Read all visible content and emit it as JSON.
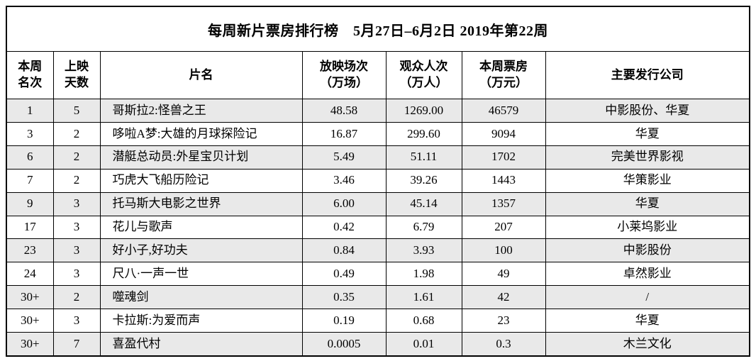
{
  "title": "每周新片票房排行榜　5月27日–6月2日 2019年第22周",
  "columns": [
    {
      "id": "rank",
      "label": "本周\n名次"
    },
    {
      "id": "days",
      "label": "上映\n天数"
    },
    {
      "id": "title",
      "label": "片名"
    },
    {
      "id": "screenings",
      "label": "放映场次\n（万场）"
    },
    {
      "id": "audience",
      "label": "观众人次\n（万人）"
    },
    {
      "id": "box_office",
      "label": "本周票房\n（万元）"
    },
    {
      "id": "distributor",
      "label": "主要发行公司"
    }
  ],
  "rows": [
    {
      "rank": "1",
      "days": "5",
      "title": "哥斯拉2:怪兽之王",
      "screenings": "48.58",
      "audience": "1269.00",
      "box_office": "46579",
      "distributor": "中影股份、华夏"
    },
    {
      "rank": "3",
      "days": "2",
      "title": "哆啦A梦:大雄的月球探险记",
      "screenings": "16.87",
      "audience": "299.60",
      "box_office": "9094",
      "distributor": "华夏"
    },
    {
      "rank": "6",
      "days": "2",
      "title": "潜艇总动员:外星宝贝计划",
      "screenings": "5.49",
      "audience": "51.11",
      "box_office": "1702",
      "distributor": "完美世界影视"
    },
    {
      "rank": "7",
      "days": "2",
      "title": "巧虎大飞船历险记",
      "screenings": "3.46",
      "audience": "39.26",
      "box_office": "1443",
      "distributor": "华策影业"
    },
    {
      "rank": "9",
      "days": "3",
      "title": "托马斯大电影之世界",
      "screenings": "6.00",
      "audience": "45.14",
      "box_office": "1357",
      "distributor": "华夏"
    },
    {
      "rank": "17",
      "days": "3",
      "title": "花儿与歌声",
      "screenings": "0.42",
      "audience": "6.79",
      "box_office": "207",
      "distributor": "小莱坞影业"
    },
    {
      "rank": "23",
      "days": "3",
      "title": "好小子,好功夫",
      "screenings": "0.84",
      "audience": "3.93",
      "box_office": "100",
      "distributor": "中影股份"
    },
    {
      "rank": "24",
      "days": "3",
      "title": "尺八·一声一世",
      "screenings": "0.49",
      "audience": "1.98",
      "box_office": "49",
      "distributor": "卓然影业"
    },
    {
      "rank": "30+",
      "days": "2",
      "title": "噬魂剑",
      "screenings": "0.35",
      "audience": "1.61",
      "box_office": "42",
      "distributor": "/"
    },
    {
      "rank": "30+",
      "days": "3",
      "title": "卡拉斯:为爱而声",
      "screenings": "0.19",
      "audience": "0.68",
      "box_office": "23",
      "distributor": "华夏"
    },
    {
      "rank": "30+",
      "days": "7",
      "title": "喜盈代村",
      "screenings": "0.0005",
      "audience": "0.01",
      "box_office": "0.3",
      "distributor": "木兰文化"
    }
  ],
  "colors": {
    "row_shade": "#e9e9e9",
    "border": "#000000",
    "background": "#ffffff"
  }
}
